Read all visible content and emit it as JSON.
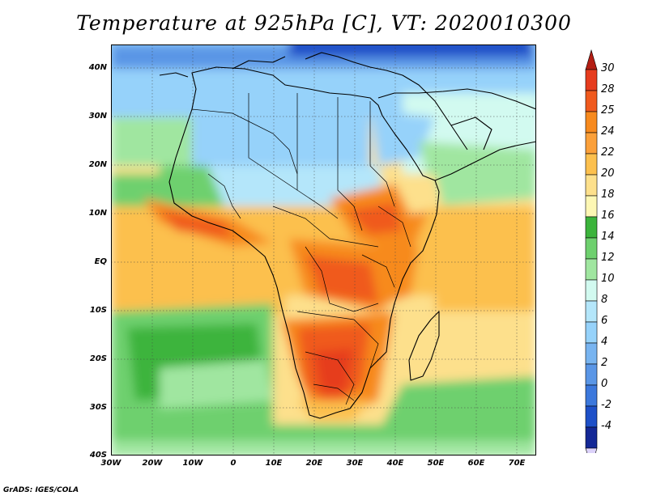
{
  "title": "Temperature at 925hPa [C], VT: 2020010300",
  "footer": "GrADS: IGES/COLA",
  "lat_labels": [
    "40N",
    "30N",
    "20N",
    "10N",
    "EQ",
    "10S",
    "20S",
    "30S",
    "40S"
  ],
  "lon_labels": [
    "30W",
    "20W",
    "10W",
    "0",
    "10E",
    "20E",
    "30E",
    "40E",
    "50E",
    "60E",
    "70E"
  ],
  "colorbar": {
    "labels": [
      "30",
      "28",
      "25",
      "24",
      "22",
      "20",
      "18",
      "16",
      "14",
      "12",
      "10",
      "8",
      "6",
      "4",
      "2",
      "0",
      "-2",
      "-4"
    ],
    "colors": [
      "#e63c1e",
      "#f05a1e",
      "#f78a1e",
      "#fba03a",
      "#fcc04e",
      "#fde08c",
      "#fdf7b4",
      "#3cb43c",
      "#6ed06e",
      "#a0e6a0",
      "#d2faf0",
      "#b4e6fa",
      "#96d2fa",
      "#78b4f0",
      "#5a96e6",
      "#3c78dc",
      "#1e50c8",
      "#142896",
      "#0a145a"
    ],
    "top_arrow_color": "#b41e14",
    "bottom_arrow_color": "#dcd2fa"
  }
}
